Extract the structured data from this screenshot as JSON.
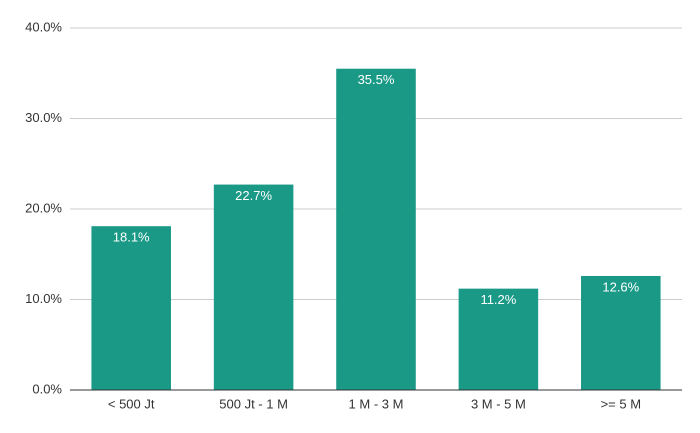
{
  "chart_data": {
    "type": "bar",
    "categories": [
      "< 500 Jt",
      "500 Jt - 1 M",
      "1 M - 3 M",
      "3 M - 5 M",
      ">= 5 M"
    ],
    "values": [
      18.1,
      22.7,
      35.5,
      11.2,
      12.6
    ],
    "value_labels": [
      "18.1%",
      "22.7%",
      "35.5%",
      "11.2%",
      "12.6%"
    ],
    "color": "#1b9987",
    "ylim": [
      0,
      40
    ],
    "yticks": [
      {
        "value": 0,
        "label": "0.0%"
      },
      {
        "value": 10,
        "label": "10.0%"
      },
      {
        "value": 20,
        "label": "20.0%"
      },
      {
        "value": 30,
        "label": "30.0%"
      },
      {
        "value": 40,
        "label": "40.0%"
      }
    ],
    "grid": true
  }
}
